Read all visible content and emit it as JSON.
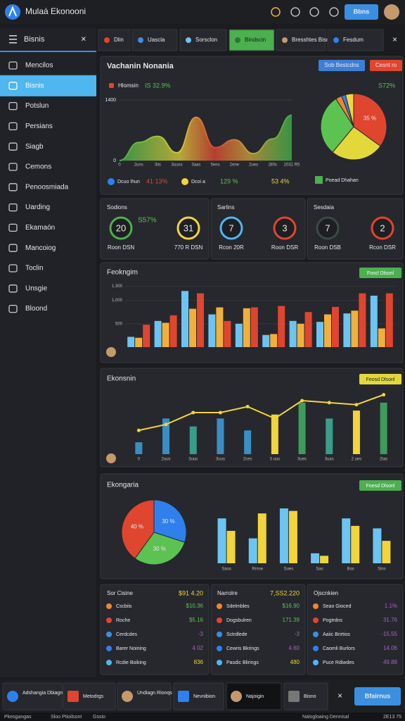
{
  "topbar": {
    "title": "Mulaá Ekonooni",
    "button": "Bbns"
  },
  "sidebar": {
    "title": "Bisnis",
    "active": 1,
    "items": [
      "Mencilos",
      "Bisnis",
      "Potslun",
      "Persians",
      "Siagb",
      "Cemons",
      "Penoosmiada",
      "Uarding",
      "Ekamaón",
      "Mancoiog",
      "Toclin",
      "Unsgie",
      "Bloond"
    ]
  },
  "tabs": {
    "active": 3,
    "items": [
      "Dlin",
      "Uascla",
      "Sorsclon",
      "Bindscin",
      "Bresshtes Bisnos",
      "Fesdum"
    ]
  },
  "overview": {
    "title": "Vachanin Nonania",
    "buttons": [
      "Sob Bestcdns",
      "Cesnt ro"
    ],
    "label": "Hlomsin",
    "change": "IS 32.9%",
    "pie_change": "S72%",
    "area": {
      "type": "area",
      "ylim": [
        0,
        1400
      ],
      "yticks": [
        0,
        1400
      ],
      "categories": [
        "0",
        "2uns",
        "3lis",
        "3uuss",
        "3aas",
        "5ens",
        "2ene",
        "2ues",
        "2ll0s",
        "2031 R5"
      ],
      "values": [
        0,
        420,
        560,
        180,
        1000,
        300,
        480,
        160,
        500,
        1050
      ]
    },
    "pie": {
      "type": "pie",
      "values": [
        35,
        26,
        30,
        3,
        2,
        4
      ],
      "colors": [
        "#e0452f",
        "#e3d83a",
        "#5cc353",
        "#f0862e",
        "#2f80ed",
        "#f2d43b"
      ],
      "value_labels": [
        "35 %",
        null,
        null,
        null,
        null,
        null
      ]
    },
    "legend": [
      {
        "name": "Dcuo Ihun",
        "value": "41 13%",
        "color": "#2f80ed"
      },
      {
        "name": "Dcoi a",
        "value": "129 %",
        "color": "#f2d43b"
      },
      {
        "name": "Poead Dhahan",
        "value": "53 4%",
        "color": "#4caf50"
      }
    ]
  },
  "kpis": [
    {
      "title": "Sodions",
      "note": "S57%",
      "rings": [
        {
          "value": 20,
          "label": "Roon DSN",
          "color": "#4caf50"
        },
        {
          "value": 31,
          "label": "770 R DSN",
          "color": "#f2d43b"
        }
      ]
    },
    {
      "title": "Sarlins",
      "rings": [
        {
          "value": 7,
          "label": "Rcon 20R",
          "color": "#4fb6f0"
        },
        {
          "value": 3,
          "label": "Roon DSR",
          "color": "#e0452f"
        }
      ]
    },
    {
      "title": "Sesdaia",
      "rings": [
        {
          "value": 7,
          "label": "Roon DSB",
          "color": "#3a4a44"
        },
        {
          "value": 2,
          "label": "Rcon DSR",
          "color": "#e0452f"
        }
      ]
    }
  ],
  "bars_panel": {
    "title": "Feokngim",
    "button": "Foscl Dlsonl",
    "chart": {
      "type": "bar",
      "ylim": [
        0,
        1400
      ],
      "yticks": [
        500,
        {
          "value": 1000,
          "label": "1,000"
        },
        {
          "value": 1300,
          "label": "1.300"
        }
      ],
      "grid": true,
      "series": [
        {
          "color": "#6cc4f2",
          "values": [
            220,
            560,
            1200,
            700,
            500,
            260,
            560,
            540,
            720,
            1100
          ]
        },
        {
          "color": "#f0b03a",
          "values": [
            200,
            520,
            820,
            850,
            830,
            280,
            500,
            700,
            780,
            400
          ]
        },
        {
          "color": "#e0452f",
          "values": [
            480,
            680,
            1150,
            560,
            850,
            880,
            750,
            860,
            1150,
            1150
          ]
        }
      ]
    }
  },
  "combo_panel": {
    "title": "Ekonsnin",
    "button": "Feosd Dlsonl",
    "chart": {
      "type": "bar-line",
      "ylim": [
        0,
        1600
      ],
      "categories": [
        "0",
        "2uus",
        "3uus",
        "3uus",
        "2ces",
        "3 uus",
        "3ues",
        "3uas",
        "2 ues",
        "2tas"
      ],
      "series": [
        {
          "kind": "bar",
          "colors": [
            "#3b8ec4",
            "#3b8ec4",
            "#3b9c8c",
            "#3b8ec4",
            "#3b8ec4",
            "#f2d43b",
            "#3f9a5c",
            "#3b9c8c",
            "#f2d43b",
            "#3f9a5c"
          ],
          "values": [
            300,
            900,
            700,
            900,
            600,
            1000,
            1300,
            900,
            1100,
            1300
          ]
        },
        {
          "kind": "line",
          "color": "#f2d43b",
          "values": [
            600,
            750,
            1050,
            1050,
            1200,
            900,
            1350,
            1300,
            1250,
            1500
          ]
        }
      ]
    }
  },
  "mix_panel": {
    "title": "Ekongaria",
    "button": "Foesd Dlsonl",
    "pie": {
      "type": "pie",
      "values": [
        30,
        30,
        40
      ],
      "colors": [
        "#2f80ed",
        "#5cc353",
        "#e0452f"
      ],
      "value_labels": [
        "30 %",
        "30 %",
        "40 %"
      ]
    },
    "chart": {
      "type": "bar",
      "ylim": [
        0,
        1200
      ],
      "categories": [
        "Saos",
        "Rrsse",
        "Sues",
        "Sas",
        "Bos",
        "Sins"
      ],
      "series": [
        {
          "color": "#6cc4f2",
          "values": [
            900,
            500,
            1100,
            200,
            900,
            700
          ]
        },
        {
          "color": "#f2d43b",
          "values": [
            650,
            1000,
            1050,
            150,
            750,
            450
          ]
        }
      ]
    }
  },
  "lists": [
    {
      "title": "Sor Cisine",
      "total": "$91 4.20",
      "rows": [
        {
          "label": "Cscbiis",
          "value": "$10.36",
          "color": "#5cc353"
        },
        {
          "label": "Roche",
          "value": "$5.16",
          "color": "#5cc353"
        },
        {
          "label": "Cerdcdes",
          "value": "-3",
          "color": "#b05cc9"
        },
        {
          "label": "Barer Noining",
          "value": "4.02",
          "color": "#b05cc9"
        },
        {
          "label": "Rcdie Boiking",
          "value": "836",
          "color": "#f2d43b"
        }
      ]
    },
    {
      "title": "Narrolre",
      "total": "7,SS2.220",
      "rows": [
        {
          "label": "Sdelmbles",
          "value": "$16.90",
          "color": "#5cc353"
        },
        {
          "label": "Dogsbulren",
          "value": "171.39",
          "color": "#5cc353"
        },
        {
          "label": "Sctrdlede",
          "value": "-3",
          "color": "#b05cc9"
        },
        {
          "label": "Cewris Bkrings",
          "value": "4.60",
          "color": "#b05cc9"
        },
        {
          "label": "Pasdic Blirings",
          "value": "480",
          "color": "#f2d43b"
        }
      ]
    },
    {
      "title": "Ojscnkien",
      "rows": [
        {
          "label": "Seao Gioced",
          "value": "1.1%",
          "color": "#b05cc9"
        },
        {
          "label": "Pogtrdns",
          "value": "31.76",
          "color": "#b05cc9"
        },
        {
          "label": "Aaiic Brirtios",
          "value": "-15.55",
          "color": "#b05cc9"
        },
        {
          "label": "Caomli Burlors",
          "value": "14.06",
          "color": "#b05cc9"
        },
        {
          "label": "Puce Rdiwdes",
          "value": "49.88",
          "color": "#b05cc9"
        }
      ]
    }
  ],
  "taskbar": {
    "items": [
      "Adshangia Dbiagn",
      "Metodrgs",
      "Undiagn Rionqs",
      "Nevnibion",
      "Najoigin",
      "Bisno"
    ],
    "button": "Bfairnus"
  },
  "status": {
    "left": [
      "Pkesgangas",
      "Sloo Ptioilsont",
      "Gssio"
    ],
    "right": [
      "Nalogloaing Dennisal",
      "2E13 75"
    ]
  }
}
